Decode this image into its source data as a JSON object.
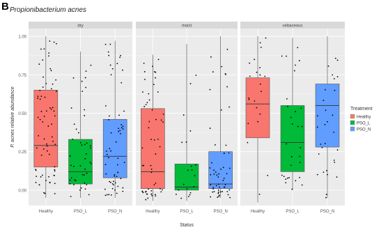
{
  "panel_label": "B",
  "chart_data": {
    "type": "box",
    "title": "Propionibacterium acnes",
    "xlabel": "Status",
    "ylabel": "P. acnes relative abundance",
    "ylim": [
      -0.1,
      1.05
    ],
    "yticks": [
      0.0,
      0.25,
      0.5,
      0.75,
      1.0
    ],
    "ytick_labels": [
      "0.00",
      "0.25",
      "0.50",
      "0.75",
      "1.00"
    ],
    "categories": [
      "Healthy",
      "PSO_L",
      "PSO_N"
    ],
    "facets": [
      "dry",
      "moist",
      "sebaceous"
    ],
    "legend": {
      "title": "Treatment",
      "position": "right",
      "items": [
        {
          "label": "Healthy",
          "color": "#f8766d"
        },
        {
          "label": "PSO_L",
          "color": "#00ba38"
        },
        {
          "label": "PSO_N",
          "color": "#619cff"
        }
      ]
    },
    "boxes": [
      {
        "facet": "dry",
        "category": "Healthy",
        "color": "#f8766d",
        "whisker_low": -0.05,
        "q1": 0.15,
        "median": 0.29,
        "q3": 0.65,
        "whisker_high": 1.0,
        "n_points": 70
      },
      {
        "facet": "dry",
        "category": "PSO_L",
        "color": "#00ba38",
        "whisker_low": -0.05,
        "q1": 0.04,
        "median": 0.12,
        "q3": 0.33,
        "whisker_high": 0.9,
        "n_points": 45
      },
      {
        "facet": "dry",
        "category": "PSO_N",
        "color": "#619cff",
        "whisker_low": -0.05,
        "q1": 0.08,
        "median": 0.22,
        "q3": 0.46,
        "whisker_high": 0.97,
        "n_points": 60
      },
      {
        "facet": "moist",
        "category": "Healthy",
        "color": "#f8766d",
        "whisker_low": -0.07,
        "q1": 0.01,
        "median": 0.12,
        "q3": 0.53,
        "whisker_high": 0.88,
        "n_points": 55
      },
      {
        "facet": "moist",
        "category": "PSO_L",
        "color": "#00ba38",
        "whisker_low": -0.07,
        "q1": 0.0,
        "median": 0.02,
        "q3": 0.17,
        "whisker_high": 0.95,
        "n_points": 20
      },
      {
        "facet": "moist",
        "category": "PSO_N",
        "color": "#619cff",
        "whisker_low": -0.05,
        "q1": 0.01,
        "median": 0.04,
        "q3": 0.25,
        "whisker_high": 1.0,
        "n_points": 55
      },
      {
        "facet": "sebaceous",
        "category": "Healthy",
        "color": "#f8766d",
        "whisker_low": -0.08,
        "q1": 0.34,
        "median": 0.56,
        "q3": 0.73,
        "whisker_high": 1.0,
        "n_points": 22
      },
      {
        "facet": "sebaceous",
        "category": "PSO_L",
        "color": "#00ba38",
        "whisker_low": 0.0,
        "q1": 0.12,
        "median": 0.31,
        "q3": 0.55,
        "whisker_high": 0.99,
        "n_points": 30
      },
      {
        "facet": "sebaceous",
        "category": "PSO_N",
        "color": "#619cff",
        "whisker_low": -0.05,
        "q1": 0.28,
        "median": 0.55,
        "q3": 0.69,
        "whisker_high": 1.0,
        "n_points": 30
      }
    ],
    "grid": true
  }
}
